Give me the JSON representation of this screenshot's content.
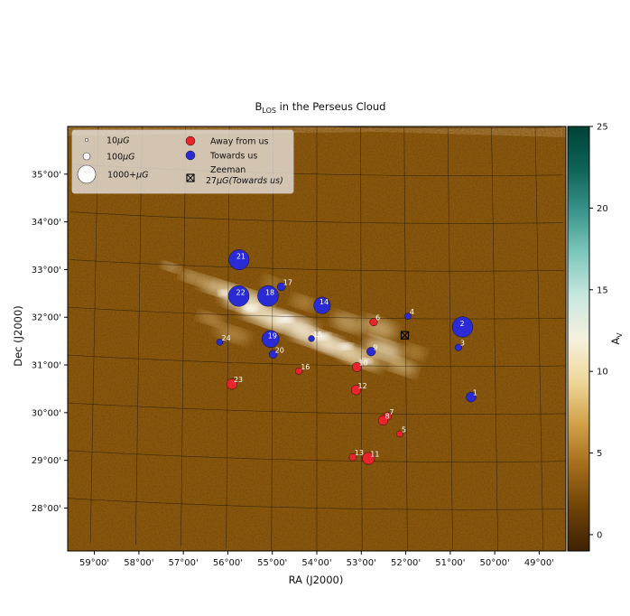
{
  "chart_data": {
    "type": "scatter",
    "title": "in the Perseus Cloud",
    "title_symbol": "B",
    "title_subscript": "LOS",
    "xlabel": "RA (J2000)",
    "ylabel": "Dec (J2000)",
    "x_ticks": [
      "59°00'",
      "58°00'",
      "57°00'",
      "56°00'",
      "55°00'",
      "54°00'",
      "53°00'",
      "52°00'",
      "51°00'",
      "50°00'",
      "49°00'"
    ],
    "y_ticks": [
      "35°00'",
      "34°00'",
      "33°00'",
      "32°00'",
      "31°00'",
      "30°00'",
      "29°00'",
      "28°00'"
    ],
    "xlim": [
      59.6,
      48.4
    ],
    "ylim": [
      27.1,
      36.0
    ],
    "grid": true,
    "legend_position": "top-left",
    "colorbar": {
      "label": "A",
      "label_subscript": "V",
      "ticks": [
        "0",
        "5",
        "10",
        "15",
        "20",
        "25"
      ],
      "range": [
        -1,
        25
      ],
      "colors": [
        "#3d2204",
        "#6e4207",
        "#a46c1a",
        "#d1a14a",
        "#efd79a",
        "#f5f1de",
        "#c8e7df",
        "#7fc8bc",
        "#3a958c",
        "#0f6358",
        "#004236"
      ]
    },
    "legend": {
      "size_entries": [
        {
          "label": "10",
          "unit": "μG"
        },
        {
          "label": "100",
          "unit": "μG"
        },
        {
          "label": "1000+",
          "unit": "μG"
        }
      ],
      "color_entries": [
        {
          "label": "Away from us",
          "color": "#e8252a"
        },
        {
          "label": "Towards us",
          "color": "#2b2bd6"
        }
      ],
      "zeeman": {
        "label": "Zeeman",
        "value": "27",
        "unit": "μG",
        "direction": "(Towards us)"
      }
    },
    "series": [
      {
        "name": "Away from us",
        "color": "#e8252a",
        "points": [
          {
            "id": "6",
            "ra": 52.72,
            "dec": 31.92,
            "b": 25
          },
          {
            "id": "7",
            "ra": 52.42,
            "dec": 29.95,
            "b": 30
          },
          {
            "id": "8",
            "ra": 52.52,
            "dec": 29.86,
            "b": 60
          },
          {
            "id": "5",
            "ra": 52.15,
            "dec": 29.58,
            "b": 10
          },
          {
            "id": "10",
            "ra": 53.1,
            "dec": 30.97,
            "b": 50
          },
          {
            "id": "12",
            "ra": 53.12,
            "dec": 30.49,
            "b": 60
          },
          {
            "id": "11",
            "ra": 52.85,
            "dec": 29.06,
            "b": 120
          },
          {
            "id": "13",
            "ra": 53.2,
            "dec": 29.08,
            "b": 20
          },
          {
            "id": "16",
            "ra": 54.4,
            "dec": 30.86,
            "b": 15
          },
          {
            "id": "23",
            "ra": 55.9,
            "dec": 30.55,
            "b": 80
          }
        ]
      },
      {
        "name": "Towards us",
        "color": "#2b2bd6",
        "points": [
          {
            "id": "1",
            "ra": 50.55,
            "dec": 30.36,
            "b": 60
          },
          {
            "id": "2",
            "ra": 50.72,
            "dec": 31.83,
            "b": 480
          },
          {
            "id": "3",
            "ra": 50.82,
            "dec": 31.4,
            "b": 15
          },
          {
            "id": "4",
            "ra": 51.95,
            "dec": 32.05,
            "b": 10
          },
          {
            "id": "9",
            "ra": 52.78,
            "dec": 31.3,
            "b": 40
          },
          {
            "id": "14",
            "ra": 53.88,
            "dec": 32.25,
            "b": 280
          },
          {
            "id": "15",
            "ra": 54.12,
            "dec": 31.55,
            "b": 8
          },
          {
            "id": "17",
            "ra": 54.8,
            "dec": 32.62,
            "b": 30
          },
          {
            "id": "18",
            "ra": 55.1,
            "dec": 32.42,
            "b": 560
          },
          {
            "id": "19",
            "ra": 55.04,
            "dec": 31.52,
            "b": 300
          },
          {
            "id": "20",
            "ra": 54.98,
            "dec": 31.2,
            "b": 30
          },
          {
            "id": "21",
            "ra": 55.76,
            "dec": 33.16,
            "b": 460
          },
          {
            "id": "22",
            "ra": 55.76,
            "dec": 32.4,
            "b": 580
          },
          {
            "id": "24",
            "ra": 56.18,
            "dec": 31.42,
            "b": 10
          }
        ]
      }
    ],
    "zeeman_point": {
      "ra": 52.02,
      "dec": 31.65
    }
  }
}
